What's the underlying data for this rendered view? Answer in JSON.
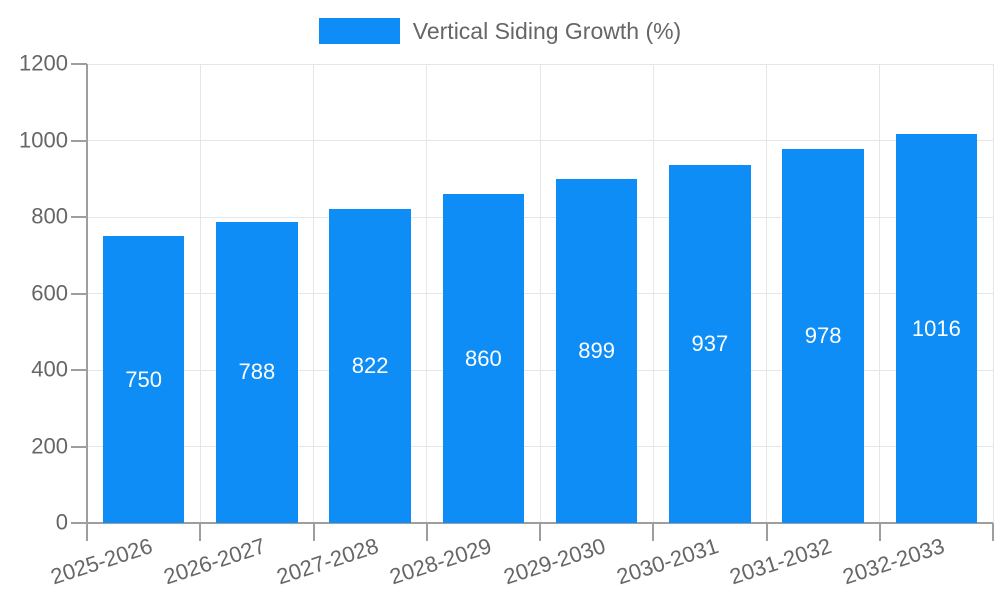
{
  "chart_data": {
    "type": "bar",
    "title": "",
    "legend": "Vertical Siding Growth (%)",
    "legend_position": "top",
    "categories": [
      "2025-2026",
      "2026-2027",
      "2027-2028",
      "2028-2029",
      "2029-2030",
      "2030-2031",
      "2031-2032",
      "2032-2033"
    ],
    "values": [
      750,
      788,
      822,
      860,
      899,
      937,
      978,
      1016
    ],
    "xlabel": "",
    "ylabel": "",
    "ylim": [
      0,
      1200
    ],
    "yticks": [
      0,
      200,
      400,
      600,
      800,
      1000,
      1200
    ],
    "grid": true,
    "bar_color": "#0d8df5",
    "grid_color": "#e6e6e6",
    "axis_line_color": "#9e9e9e",
    "axis_text_color": "#666666",
    "value_label_color": "#ffffff"
  }
}
